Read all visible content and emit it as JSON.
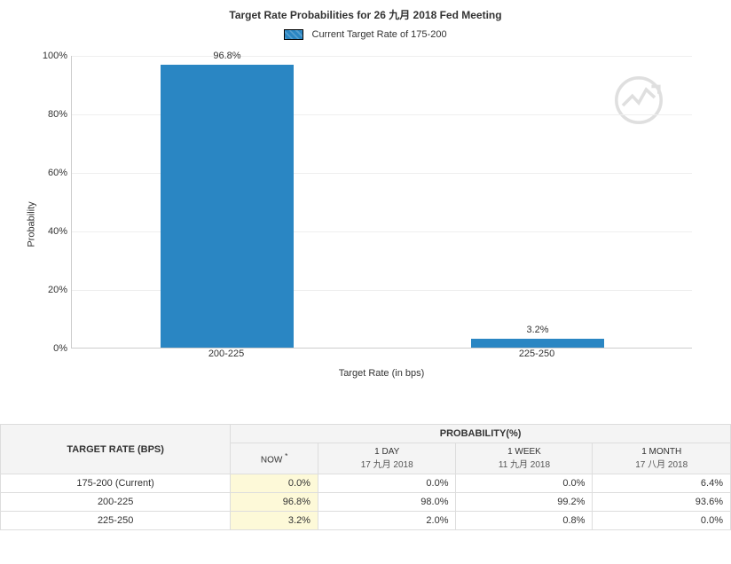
{
  "title": "Target Rate Probabilities for 26 九月 2018 Fed Meeting",
  "legend_label": "Current Target Rate of 175-200",
  "chart": {
    "type": "bar",
    "y_axis_title": "Probability",
    "x_axis_title": "Target Rate (in bps)",
    "ylim": [
      0,
      100
    ],
    "ytick_step": 20,
    "ytick_suffix": "%",
    "bar_color": "#2a86c3",
    "grid_color": "#eeeeee",
    "background_color": "#ffffff",
    "bars": [
      {
        "label": "200-225",
        "value": 96.8,
        "display": "96.8%"
      },
      {
        "label": "225-250",
        "value": 3.2,
        "display": "3.2%"
      }
    ]
  },
  "table": {
    "row_header": "TARGET RATE (BPS)",
    "prob_header": "PROBABILITY(%)",
    "columns": [
      {
        "key": "now",
        "label": "NOW",
        "star": true,
        "sublabel": ""
      },
      {
        "key": "d1",
        "label": "1 DAY",
        "sublabel": "17 九月 2018"
      },
      {
        "key": "w1",
        "label": "1 WEEK",
        "sublabel": "11 九月 2018"
      },
      {
        "key": "m1",
        "label": "1 MONTH",
        "sublabel": "17 八月 2018"
      }
    ],
    "rows": [
      {
        "label": "175-200 (Current)",
        "cells": [
          "0.0%",
          "0.0%",
          "0.0%",
          "6.4%"
        ]
      },
      {
        "label": "200-225",
        "cells": [
          "96.8%",
          "98.0%",
          "99.2%",
          "93.6%"
        ]
      },
      {
        "label": "225-250",
        "cells": [
          "3.2%",
          "2.0%",
          "0.8%",
          "0.0%"
        ]
      }
    ]
  }
}
